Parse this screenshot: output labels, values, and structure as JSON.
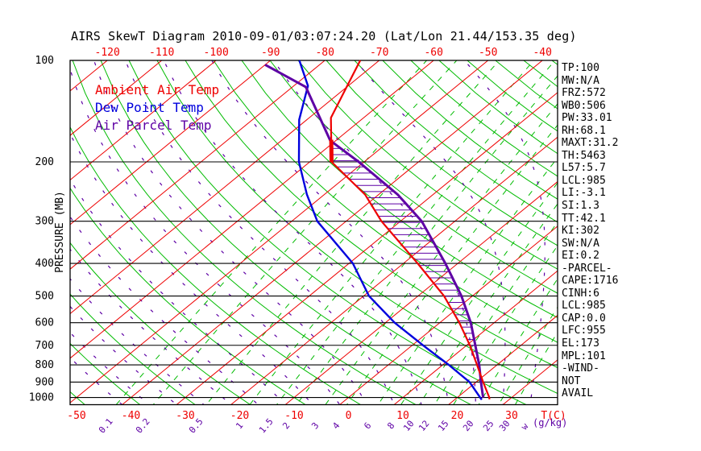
{
  "title": "AIRS SkewT Diagram 2010-09-01/03:07:24.20 (Lat/Lon 21.44/153.35 deg)",
  "palette": {
    "red": "#ee0000",
    "green": "#00bb00",
    "blue": "#0000dd",
    "purple": "#5e00a5",
    "black": "#000000"
  },
  "legend": [
    {
      "label": "Ambient Air Temp",
      "color": "red"
    },
    {
      "label": "Dew Point Temp",
      "color": "blue"
    },
    {
      "label": "Air Parcel Temp",
      "color": "purple"
    }
  ],
  "pressure_axis": {
    "label": "PRESSURE (MB)",
    "ticks": [
      100,
      200,
      300,
      400,
      500,
      600,
      700,
      800,
      900,
      1000
    ]
  },
  "top_axis": {
    "values": [
      -120,
      -110,
      -100,
      -90,
      -80,
      -70,
      -60,
      -50,
      -40
    ]
  },
  "bottom_axis": {
    "values": [
      -50,
      -40,
      -30,
      -20,
      -10,
      0,
      10,
      20,
      30
    ],
    "unit_label": "T(C)"
  },
  "mixing_axis": {
    "values": [
      0.1,
      0.2,
      0.5,
      1,
      1.5,
      2,
      3,
      4,
      6,
      8,
      10,
      12,
      15,
      20,
      25,
      30
    ],
    "unit_prefix": "w",
    "unit_label": "(g/kg)"
  },
  "stats": [
    "TP:100",
    "MW:N/A",
    "FRZ:572",
    "WB0:506",
    "PW:33.01",
    "RH:68.1",
    "MAXT:31.2",
    "TH:5463",
    "L57:5.7",
    "LCL:985",
    "LI:-3.1",
    "SI:1.3",
    "TT:42.1",
    "KI:302",
    "SW:N/A",
    "EI:0.2",
    "-PARCEL-",
    "CAPE:1716",
    "CINH:6",
    "LCL:985",
    "CAP:0.0",
    "LFC:955",
    "EL:173",
    "MPL:101",
    "-WIND-",
    "NOT",
    "AVAIL"
  ],
  "chart_data": {
    "type": "line",
    "subtype": "skewT-logP",
    "xlabel": "T(C)",
    "ylabel": "PRESSURE (MB)",
    "pressure_range_mb": [
      100,
      1050
    ],
    "temperature_labels_c": [
      -120,
      -110,
      -100,
      -90,
      -80,
      -70,
      -60,
      -50,
      -40,
      -30,
      -20,
      -10,
      0,
      10,
      20,
      30
    ],
    "pressure_lines_mb": [
      100,
      200,
      300,
      400,
      500,
      600,
      700,
      800,
      900,
      1000
    ],
    "grid": {
      "isotherms_c": {
        "min": -120,
        "max": 30,
        "step": 10
      },
      "dry_adiabats_theta_c": {
        "min": -50,
        "max": 180,
        "step": 10
      },
      "mixing_ratios_gkg": [
        0.1,
        0.2,
        0.5,
        1,
        1.5,
        2,
        3,
        4,
        6,
        8,
        10,
        12,
        15,
        20,
        25,
        30
      ],
      "moist_adiabats_surface_c": {
        "min": -40,
        "max": 40,
        "step": 5
      }
    },
    "series": [
      {
        "name": "Ambient Air Temp",
        "color": "red",
        "width": 2.2,
        "points_p_t": [
          [
            1012,
            26.3
          ],
          [
            1000,
            25.9
          ],
          [
            900,
            21.3
          ],
          [
            800,
            16.3
          ],
          [
            700,
            10.6
          ],
          [
            600,
            3.6
          ],
          [
            500,
            -5.2
          ],
          [
            400,
            -17.4
          ],
          [
            300,
            -33.5
          ],
          [
            250,
            -42.5
          ],
          [
            200,
            -56.0
          ],
          [
            148,
            -66.0
          ],
          [
            117,
            -70.5
          ],
          [
            100,
            -73.5
          ]
        ]
      },
      {
        "name": "Dew Point Temp",
        "color": "blue",
        "width": 2.4,
        "points_p_t": [
          [
            1015,
            25.0
          ],
          [
            1000,
            24.2
          ],
          [
            900,
            18.8
          ],
          [
            800,
            11.1
          ],
          [
            700,
            2.0
          ],
          [
            600,
            -8.3
          ],
          [
            500,
            -19.0
          ],
          [
            400,
            -29.3
          ],
          [
            300,
            -45.3
          ],
          [
            250,
            -53.2
          ],
          [
            200,
            -62.0
          ],
          [
            150,
            -71.4
          ],
          [
            119,
            -77.4
          ],
          [
            100,
            -84.7
          ]
        ]
      },
      {
        "name": "Air Parcel Temp",
        "color": "purple",
        "width": 3,
        "points_p_t": [
          [
            1000,
            24.8
          ],
          [
            985,
            24.2
          ],
          [
            900,
            20.9
          ],
          [
            800,
            16.7
          ],
          [
            700,
            11.6
          ],
          [
            600,
            5.7
          ],
          [
            500,
            -2.0
          ],
          [
            400,
            -12.3
          ],
          [
            300,
            -26.1
          ],
          [
            250,
            -36.5
          ],
          [
            200,
            -51.0
          ],
          [
            173,
            -61.0
          ],
          [
            120,
            -77.5
          ],
          [
            103,
            -90.0
          ]
        ]
      }
    ],
    "cape_hatch": {
      "top_p": 173,
      "bottom_p": 955,
      "left_series": 0,
      "right_series": 2
    },
    "ambient_thick_segment_p": [
      200,
      172
    ],
    "annotations": {
      "EL_mb": 173,
      "LFC_mb": 955,
      "CAPE": 1716
    }
  }
}
